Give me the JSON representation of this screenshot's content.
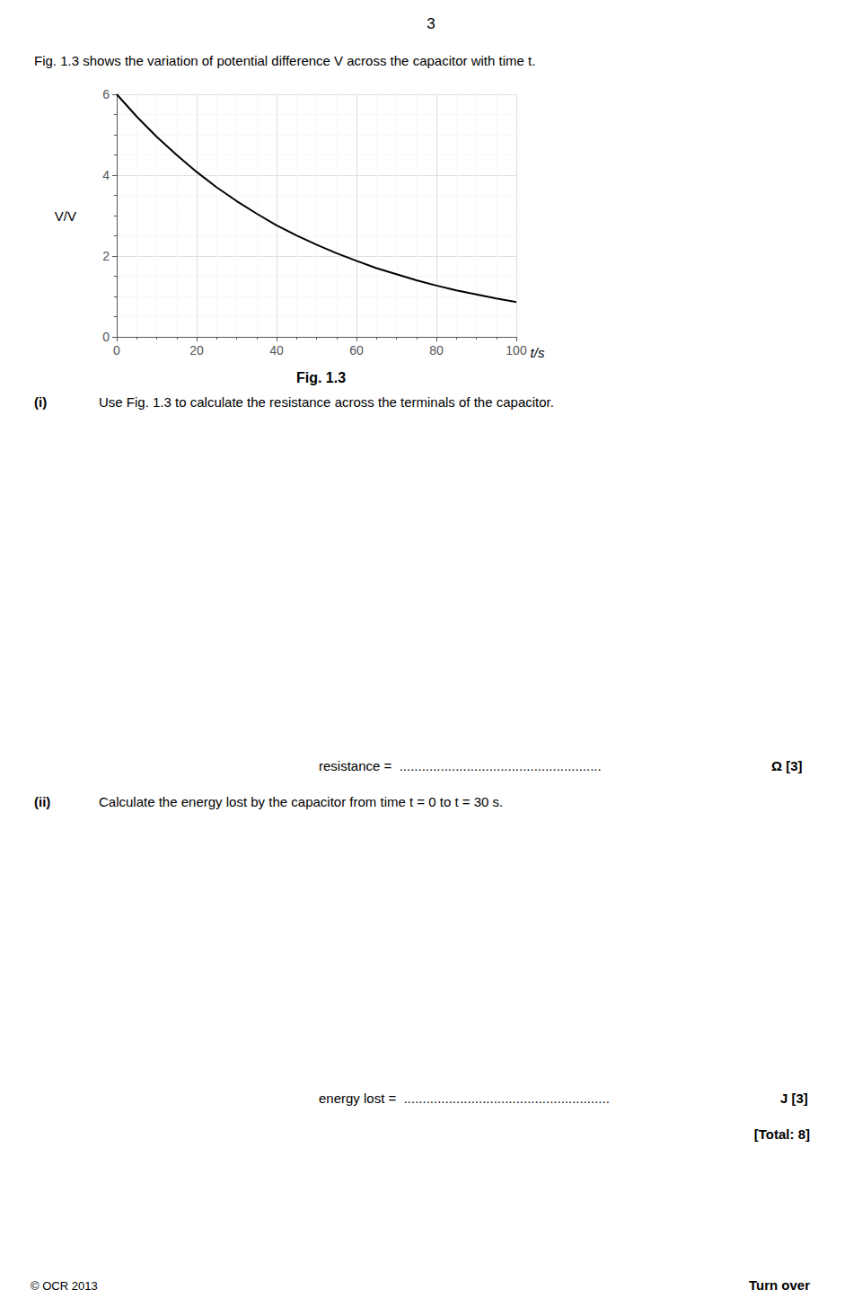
{
  "chart_data": {
    "type": "line",
    "title": "Fig. 1.3",
    "xlabel": "t/s",
    "ylabel": "V/V",
    "x": [
      0,
      5,
      10,
      15,
      20,
      25,
      30,
      35,
      40,
      45,
      50,
      55,
      60,
      65,
      70,
      75,
      80,
      85,
      90,
      95,
      100
    ],
    "values": [
      6.0,
      5.45,
      4.95,
      4.5,
      4.08,
      3.7,
      3.36,
      3.05,
      2.76,
      2.51,
      2.28,
      2.07,
      1.88,
      1.7,
      1.55,
      1.4,
      1.27,
      1.15,
      1.05,
      0.95,
      0.86
    ],
    "color": "#000000",
    "xlim": [
      0,
      100
    ],
    "ylim": [
      0,
      6
    ],
    "xticks": [
      0,
      20,
      40,
      60,
      80,
      100
    ],
    "yticks": [
      0,
      2,
      4,
      6
    ],
    "grid": true,
    "annotations": [
      "3",
      "Fig. 1.3 shows the variation of potential difference V across the capacitor with time t.",
      "(i)",
      "Use Fig. 1.3 to calculate the resistance across the terminals of the capacitor.",
      "resistance =  ......................................................",
      "Ω [3]",
      "(ii)",
      "Calculate the energy lost by the capacitor from time t = 0 to t = 30 s.",
      "energy lost =  .......................................................",
      "J [3]",
      "[Total: 8]",
      "© OCR 2013",
      "Turn over"
    ]
  }
}
